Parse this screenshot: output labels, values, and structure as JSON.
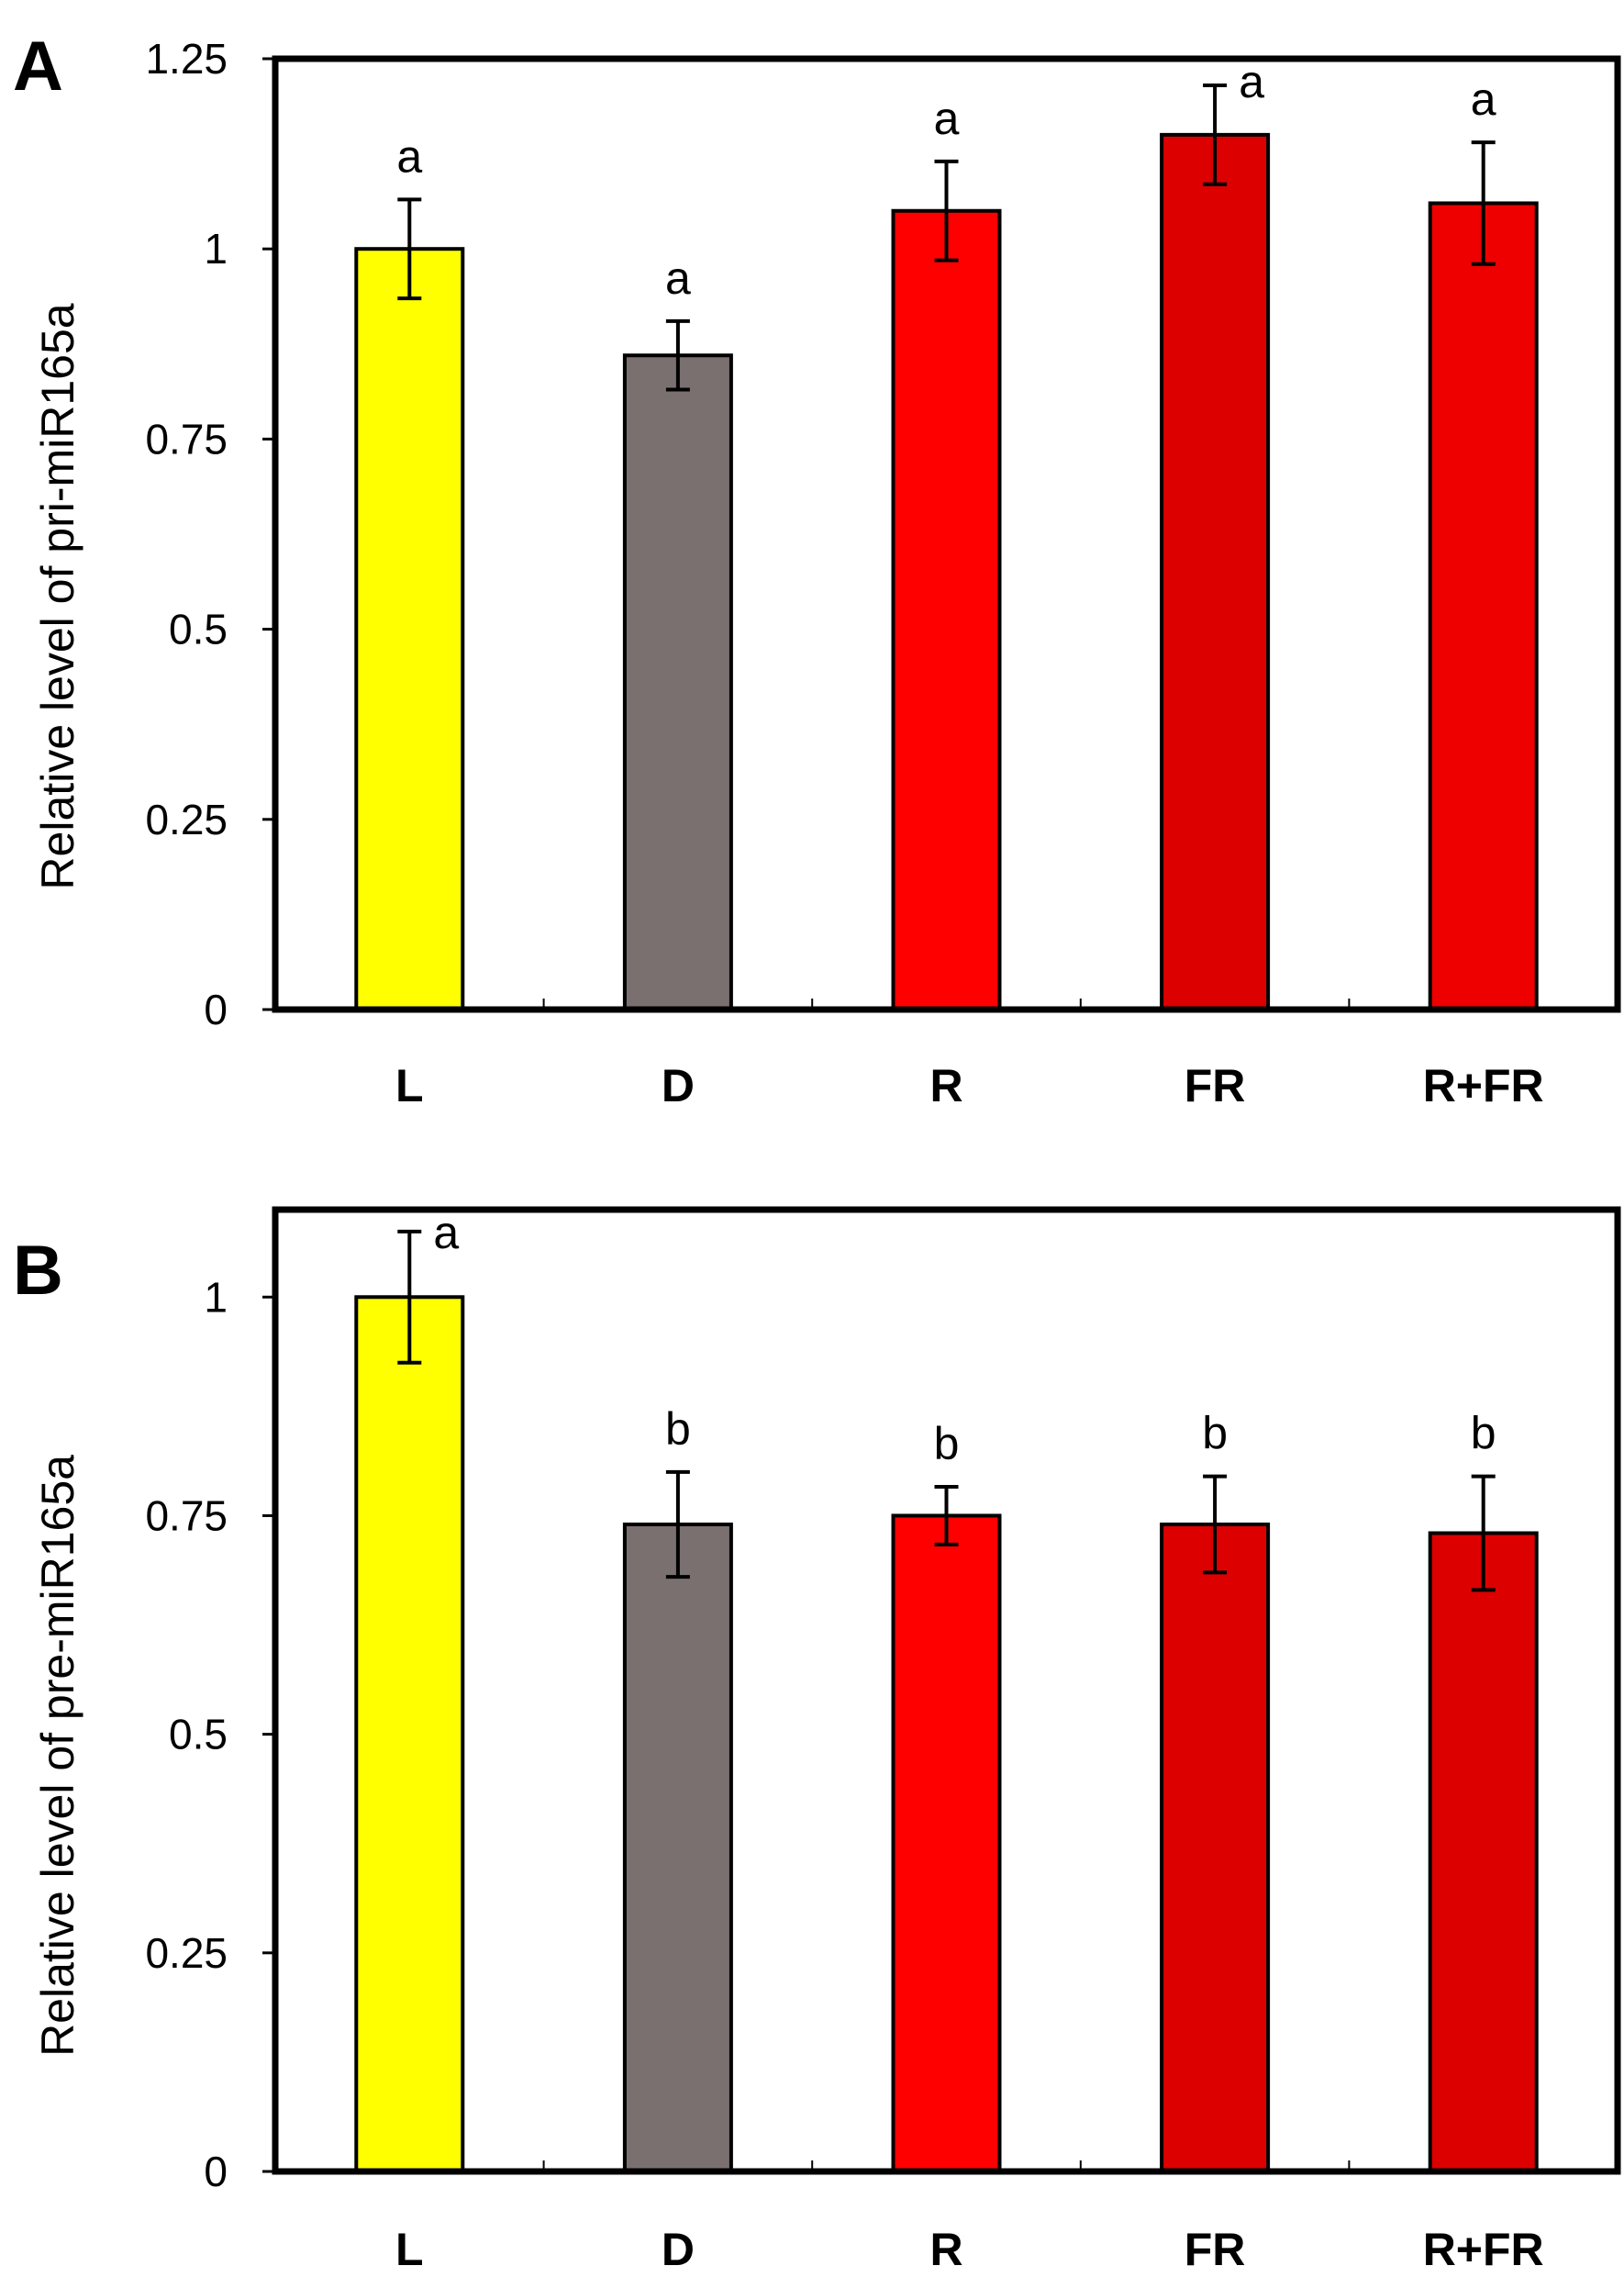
{
  "chart_data": [
    {
      "panel": "A",
      "type": "bar",
      "categories": [
        "L",
        "D",
        "R",
        "FR",
        "R+FR"
      ],
      "values": [
        1.0,
        0.86,
        1.05,
        1.15,
        1.06
      ],
      "errors": [
        0.065,
        0.045,
        0.065,
        0.065,
        0.08
      ],
      "significance": [
        "a",
        "a",
        "a",
        "a",
        "a"
      ],
      "colors": [
        "#ffff00",
        "#7a7070",
        "#ff0000",
        "#dd0000",
        "#ee0000"
      ],
      "ylabel": "Relative level of pri-miR165a",
      "xlabel": "",
      "ylim": [
        0,
        1.25
      ],
      "yticks": [
        0,
        0.25,
        0.5,
        0.75,
        1,
        1.25
      ],
      "ytick_labels": [
        "0",
        "0.25",
        "0.5",
        "0.75",
        "1",
        "1.25"
      ]
    },
    {
      "panel": "B",
      "type": "bar",
      "categories": [
        "L",
        "D",
        "R",
        "FR",
        "R+FR"
      ],
      "values": [
        1.0,
        0.74,
        0.75,
        0.74,
        0.73
      ],
      "errors": [
        0.075,
        0.06,
        0.033,
        0.055,
        0.065
      ],
      "significance": [
        "a",
        "b",
        "b",
        "b",
        "b"
      ],
      "colors": [
        "#ffff00",
        "#7a7070",
        "#ff0000",
        "#dd0000",
        "#dd0000"
      ],
      "ylabel": "Relative level of pre-miR165a",
      "xlabel": "",
      "ylim": [
        0,
        1.1
      ],
      "yticks": [
        0,
        0.25,
        0.5,
        0.75,
        1
      ],
      "ytick_labels": [
        "0",
        "0.25",
        "0.5",
        "0.75",
        "1"
      ]
    }
  ]
}
